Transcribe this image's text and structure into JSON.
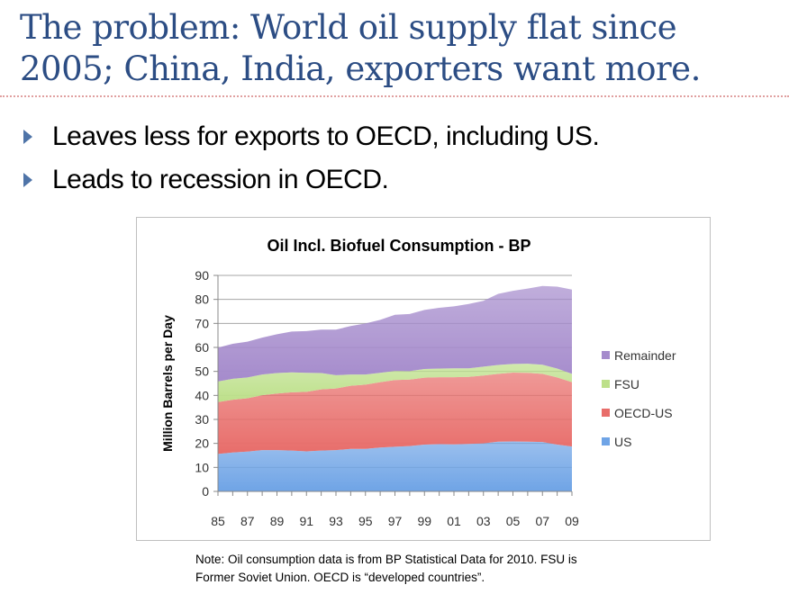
{
  "slide": {
    "title_line1": "The problem: World oil supply flat since",
    "title_line2": "2005; China, India, exporters want more.",
    "bullets": [
      "Leaves less for exports to OECD, including US.",
      "Leads to recession in OECD."
    ],
    "note_line1": "Note: Oil consumption data is from BP Statistical Data for 2010. FSU is",
    "note_line2": "Former Soviet Union.  OECD is “developed countries”.",
    "colors": {
      "title": "#2c4d84",
      "bullet": "#4f74a8",
      "rule": "#e0a0a0"
    }
  },
  "chart_data": {
    "type": "area",
    "stacked": true,
    "title": "Oil Incl. Biofuel Consumption - BP",
    "xlabel": "",
    "ylabel": "Million Barrels per Day",
    "ylim": [
      0,
      90
    ],
    "yticks": [
      "0",
      "10",
      "20",
      "30",
      "40",
      "50",
      "60",
      "70",
      "80",
      "90"
    ],
    "grid": true,
    "legend_position": "right",
    "x": [
      "85",
      "86",
      "87",
      "88",
      "89",
      "90",
      "91",
      "92",
      "93",
      "94",
      "95",
      "96",
      "97",
      "98",
      "99",
      "00",
      "01",
      "02",
      "03",
      "04",
      "05",
      "06",
      "07",
      "08",
      "09"
    ],
    "xtick_labels": [
      "85",
      "87",
      "89",
      "91",
      "93",
      "95",
      "97",
      "99",
      "01",
      "03",
      "05",
      "07",
      "09"
    ],
    "series": [
      {
        "name": "US",
        "color": "#6fa4e6",
        "values": [
          15.6,
          16.2,
          16.6,
          17.2,
          17.2,
          17.0,
          16.7,
          17.0,
          17.2,
          17.7,
          17.7,
          18.3,
          18.6,
          18.9,
          19.5,
          19.7,
          19.6,
          19.8,
          20.0,
          20.7,
          20.8,
          20.7,
          20.6,
          19.5,
          18.7
        ]
      },
      {
        "name": "OECD-US",
        "color": "#e86d6a",
        "values": [
          21.6,
          22.0,
          22.2,
          22.9,
          23.6,
          24.3,
          24.8,
          25.5,
          25.7,
          26.3,
          26.8,
          27.2,
          27.8,
          27.7,
          27.9,
          27.9,
          28.0,
          27.9,
          28.3,
          28.3,
          28.7,
          28.7,
          28.4,
          28.0,
          26.8
        ]
      },
      {
        "name": "FSU",
        "color": "#bde08a",
        "values": [
          8.6,
          8.7,
          8.7,
          8.6,
          8.5,
          8.3,
          7.9,
          6.8,
          5.5,
          4.7,
          4.2,
          3.9,
          3.8,
          3.5,
          3.6,
          3.6,
          3.7,
          3.6,
          3.7,
          3.7,
          3.6,
          3.8,
          3.8,
          3.7,
          3.5
        ]
      },
      {
        "name": "Remainder",
        "color": "#a58bcc",
        "values": [
          14.1,
          14.6,
          14.9,
          15.4,
          16.2,
          17.0,
          17.4,
          18.1,
          19.0,
          20.2,
          21.3,
          22.1,
          23.4,
          23.8,
          24.6,
          25.3,
          25.8,
          26.8,
          27.4,
          29.6,
          30.5,
          31.3,
          32.8,
          34.1,
          35.1
        ]
      }
    ]
  }
}
